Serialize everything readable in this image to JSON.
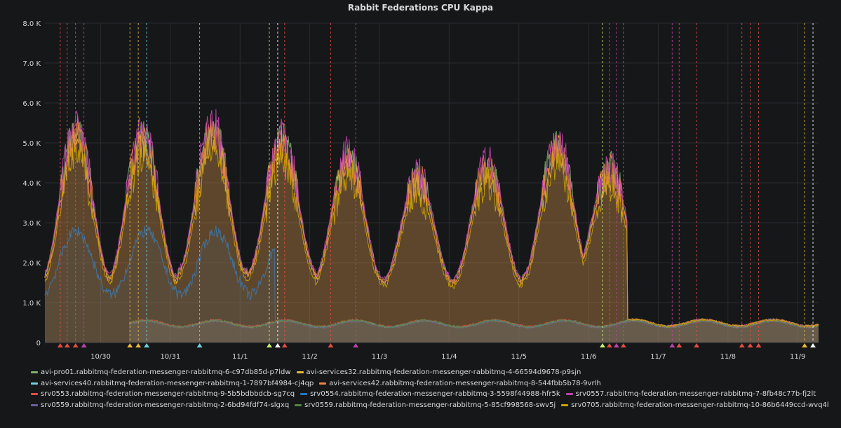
{
  "panel": {
    "title": "Rabbit Federations CPU Kappa"
  },
  "chart_data": {
    "type": "area",
    "title": "Rabbit Federations CPU Kappa",
    "ylim": [
      0,
      8000
    ],
    "y_ticks": [
      {
        "value": 0,
        "label": "0"
      },
      {
        "value": 1000,
        "label": "1.0 K"
      },
      {
        "value": 2000,
        "label": "2.0 K"
      },
      {
        "value": 3000,
        "label": "3.0 K"
      },
      {
        "value": 4000,
        "label": "4.0 K"
      },
      {
        "value": 5000,
        "label": "5.0 K"
      },
      {
        "value": 6000,
        "label": "6.0 K"
      },
      {
        "value": 7000,
        "label": "7.0 K"
      },
      {
        "value": 8000,
        "label": "8.0 K"
      }
    ],
    "x_range": [
      0,
      11.1
    ],
    "x_ticks": [
      {
        "value": 0.8,
        "label": "10/30"
      },
      {
        "value": 1.8,
        "label": "10/31"
      },
      {
        "value": 2.8,
        "label": "11/1"
      },
      {
        "value": 3.8,
        "label": "11/2"
      },
      {
        "value": 4.8,
        "label": "11/3"
      },
      {
        "value": 5.8,
        "label": "11/4"
      },
      {
        "value": 6.8,
        "label": "11/5"
      },
      {
        "value": 7.8,
        "label": "11/6"
      },
      {
        "value": 8.8,
        "label": "11/7"
      },
      {
        "value": 9.8,
        "label": "11/8"
      },
      {
        "value": 10.8,
        "label": "11/9"
      }
    ],
    "grid": true,
    "legend_position": "bottom",
    "daily_peaks": [
      {
        "day_center": 0.45,
        "peak": 5100,
        "trough": 1550
      },
      {
        "day_center": 1.4,
        "peak": 5000,
        "trough": 1550
      },
      {
        "day_center": 2.4,
        "peak": 5200,
        "trough": 1700
      },
      {
        "day_center": 3.4,
        "peak": 4900,
        "trough": 1700
      },
      {
        "day_center": 4.35,
        "peak": 4500,
        "trough": 1550
      },
      {
        "day_center": 5.35,
        "peak": 4000,
        "trough": 1500
      },
      {
        "day_center": 6.35,
        "peak": 4300,
        "trough": 1500
      },
      {
        "day_center": 7.35,
        "peak": 4800,
        "trough": 1600
      },
      {
        "day_center": 8.1,
        "peak": 4200,
        "trough": 1700
      }
    ],
    "series": [
      {
        "name": "avi-pro01.rabbitmq-federation-messenger-rabbitmq-6-c97db85d-p7ldw",
        "color": "#7eb26d",
        "group": "high",
        "scale": 1.04
      },
      {
        "name": "avi-services32.rabbitmq-federation-messenger-rabbitmq-4-66594d9678-p9sjn",
        "color": "#eab839",
        "group": "high",
        "scale": 1.0
      },
      {
        "name": "avi-services40.rabbitmq-federation-messenger-rabbitmq-1-7897bf4984-cj4qp",
        "color": "#6ed0e0",
        "group": "low",
        "scale": 1.0
      },
      {
        "name": "avi-services42.rabbitmq-federation-messenger-rabbitmq-8-544fbb5b78-9vrlh",
        "color": "#ef843c",
        "group": "high",
        "scale": 1.02
      },
      {
        "name": "srv0553.rabbitmq-federation-messenger-rabbitmq-9-5b5bdbbdcb-sg7cq",
        "color": "#e24d42",
        "group": "low",
        "scale": 1.03
      },
      {
        "name": "srv0554.rabbitmq-federation-messenger-rabbitmq-3-5598f44988-hfr5k",
        "color": "#1f78c1",
        "group": "mid",
        "scale": 1.0
      },
      {
        "name": "srv0557.rabbitmq-federation-messenger-rabbitmq-7-8fb48c77b-fj2lt",
        "color": "#ba43a9",
        "group": "high",
        "scale": 1.06
      },
      {
        "name": "srv0559.rabbitmq-federation-messenger-rabbitmq-2-6bd94fdf74-slgxq",
        "color": "#705da0",
        "group": "low",
        "scale": 0.97
      },
      {
        "name": "srv0559.rabbitmq-federation-messenger-rabbitmq-5-85cf998568-swv5j",
        "color": "#508642",
        "group": "low",
        "scale": 1.01
      },
      {
        "name": "srv0705.rabbitmq-federation-messenger-rabbitmq-10-86b6449ccd-wvq4l",
        "color": "#cca300",
        "group": "high",
        "scale": 0.94
      }
    ],
    "annotations": [
      {
        "x": 0.22,
        "color": "#e24d42"
      },
      {
        "x": 0.32,
        "color": "#e24d42"
      },
      {
        "x": 0.44,
        "color": "#e24d42"
      },
      {
        "x": 0.56,
        "color": "#ba43a9"
      },
      {
        "x": 1.22,
        "color": "#eab839"
      },
      {
        "x": 1.34,
        "color": "#eab839"
      },
      {
        "x": 1.46,
        "color": "#6ed0e0"
      },
      {
        "x": 2.22,
        "color": "#6ed0e0"
      },
      {
        "x": 3.22,
        "color": "#c8f26d"
      },
      {
        "x": 3.34,
        "color": "#ffffff"
      },
      {
        "x": 3.44,
        "color": "#e24d42"
      },
      {
        "x": 4.1,
        "color": "#e24d42"
      },
      {
        "x": 4.46,
        "color": "#ba43a9"
      },
      {
        "x": 8.0,
        "color": "#c8f26d"
      },
      {
        "x": 8.1,
        "color": "#e24d42"
      },
      {
        "x": 8.2,
        "color": "#ba43a9"
      },
      {
        "x": 8.3,
        "color": "#e24d42"
      },
      {
        "x": 9.0,
        "color": "#ba43a9"
      },
      {
        "x": 9.1,
        "color": "#e24d42"
      },
      {
        "x": 9.35,
        "color": "#e24d42"
      },
      {
        "x": 10.0,
        "color": "#e24d42"
      },
      {
        "x": 10.12,
        "color": "#e24d42"
      },
      {
        "x": 10.24,
        "color": "#e24d42"
      },
      {
        "x": 10.9,
        "color": "#eab839"
      },
      {
        "x": 11.02,
        "color": "#ffffff"
      }
    ]
  },
  "legend": {
    "rows": [
      [
        0,
        1
      ],
      [
        2,
        3
      ],
      [
        4,
        5,
        6
      ],
      [
        7,
        8,
        9
      ]
    ]
  }
}
